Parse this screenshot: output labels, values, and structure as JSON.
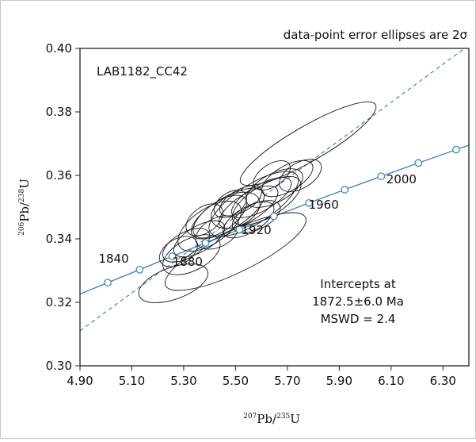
{
  "chart_data": {
    "type": "scatter",
    "title": "",
    "note": "data-point error ellipses are 2σ",
    "sample_label": "LAB1182_CC42",
    "xlabel": {
      "sup": "207",
      "base": "Pb/",
      "sup2": "235",
      "tail": "U"
    },
    "ylabel": {
      "sup": "206",
      "base": "Pb/",
      "sup2": "238",
      "tail": "U"
    },
    "xlim": [
      4.9,
      6.4
    ],
    "ylim": [
      0.3,
      0.4
    ],
    "x_ticks": [
      "4.90",
      "5.10",
      "5.30",
      "5.50",
      "5.70",
      "5.90",
      "6.10",
      "6.30"
    ],
    "y_ticks": [
      "0.30",
      "0.32",
      "0.34",
      "0.36",
      "0.38",
      "0.40"
    ],
    "intercept_text": [
      "Intercepts at",
      "1872.5±6.0 Ma",
      "MSWD = 2.4"
    ],
    "concordia": {
      "color": "#4a86b8",
      "markers": [
        {
          "x": 5.007,
          "y": 0.3262
        },
        {
          "x": 5.13,
          "y": 0.3303
        },
        {
          "x": 5.256,
          "y": 0.3345
        },
        {
          "x": 5.384,
          "y": 0.3387
        },
        {
          "x": 5.515,
          "y": 0.3429
        },
        {
          "x": 5.648,
          "y": 0.3471
        },
        {
          "x": 5.783,
          "y": 0.3513
        },
        {
          "x": 5.921,
          "y": 0.3555
        },
        {
          "x": 6.062,
          "y": 0.3597
        },
        {
          "x": 6.205,
          "y": 0.3639
        },
        {
          "x": 6.351,
          "y": 0.3681
        }
      ],
      "age_labels": [
        {
          "text": "1840",
          "x": 5.03,
          "y": 0.3325
        },
        {
          "text": "1880",
          "x": 5.315,
          "y": 0.3315
        },
        {
          "text": "1920",
          "x": 5.58,
          "y": 0.3415
        },
        {
          "text": "1960",
          "x": 5.84,
          "y": 0.3495
        },
        {
          "text": "2000",
          "x": 6.14,
          "y": 0.3575
        }
      ]
    },
    "regression": {
      "color": "#4a86b8",
      "x": [
        4.9,
        6.4
      ],
      "y": [
        0.311,
        0.401
      ]
    },
    "ellipses": [
      {
        "cx": 5.55,
        "cy": 0.35,
        "a": 0.13,
        "b": 0.0042,
        "angle": 32
      },
      {
        "cx": 5.47,
        "cy": 0.348,
        "a": 0.16,
        "b": 0.005,
        "angle": 31
      },
      {
        "cx": 5.6,
        "cy": 0.353,
        "a": 0.13,
        "b": 0.004,
        "angle": 30
      },
      {
        "cx": 5.4,
        "cy": 0.344,
        "a": 0.14,
        "b": 0.0055,
        "angle": 34
      },
      {
        "cx": 5.65,
        "cy": 0.356,
        "a": 0.12,
        "b": 0.0045,
        "angle": 28
      },
      {
        "cx": 5.36,
        "cy": 0.34,
        "a": 0.11,
        "b": 0.004,
        "angle": 30
      },
      {
        "cx": 5.57,
        "cy": 0.351,
        "a": 0.2,
        "b": 0.006,
        "angle": 33
      },
      {
        "cx": 5.5,
        "cy": 0.349,
        "a": 0.1,
        "b": 0.005,
        "angle": 25
      },
      {
        "cx": 5.44,
        "cy": 0.347,
        "a": 0.12,
        "b": 0.0045,
        "angle": 35
      },
      {
        "cx": 5.62,
        "cy": 0.352,
        "a": 0.15,
        "b": 0.005,
        "angle": 31
      },
      {
        "cx": 5.31,
        "cy": 0.338,
        "a": 0.1,
        "b": 0.004,
        "angle": 29
      },
      {
        "cx": 5.52,
        "cy": 0.352,
        "a": 0.09,
        "b": 0.0035,
        "angle": 30
      },
      {
        "cx": 5.7,
        "cy": 0.359,
        "a": 0.11,
        "b": 0.004,
        "angle": 30
      },
      {
        "cx": 5.43,
        "cy": 0.342,
        "a": 0.09,
        "b": 0.0045,
        "angle": 28
      },
      {
        "cx": 5.58,
        "cy": 0.347,
        "a": 0.1,
        "b": 0.004,
        "angle": 26
      },
      {
        "cx": 5.33,
        "cy": 0.335,
        "a": 0.12,
        "b": 0.005,
        "angle": 27
      },
      {
        "cx": 5.48,
        "cy": 0.351,
        "a": 0.07,
        "b": 0.0035,
        "angle": 34
      },
      {
        "cx": 5.64,
        "cy": 0.36,
        "a": 0.08,
        "b": 0.0035,
        "angle": 33
      },
      {
        "cx": 5.75,
        "cy": 0.36,
        "a": 0.09,
        "b": 0.004,
        "angle": 31
      },
      {
        "cx": 5.38,
        "cy": 0.346,
        "a": 0.08,
        "b": 0.004,
        "angle": 36
      },
      {
        "cx": 5.55,
        "cy": 0.346,
        "a": 0.11,
        "b": 0.004,
        "angle": 30
      },
      {
        "cx": 5.28,
        "cy": 0.336,
        "a": 0.08,
        "b": 0.004,
        "angle": 30
      },
      {
        "cx": 5.26,
        "cy": 0.326,
        "a": 0.14,
        "b": 0.005,
        "angle": 20
      },
      {
        "cx": 5.78,
        "cy": 0.37,
        "a": 0.3,
        "b": 0.0055,
        "angle": 30
      },
      {
        "cx": 5.5,
        "cy": 0.336,
        "a": 0.3,
        "b": 0.0065,
        "angle": 26
      }
    ]
  }
}
